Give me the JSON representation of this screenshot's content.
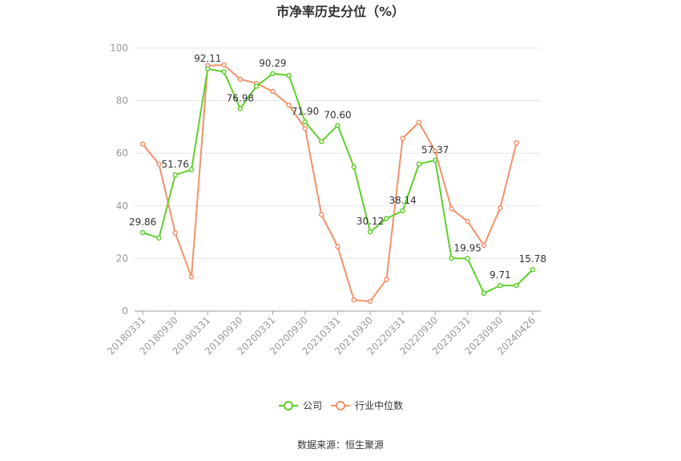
{
  "chart_data": {
    "type": "line",
    "title": "市净率历史分位（%）",
    "xlabel": "",
    "ylabel": "",
    "ylim": [
      0,
      100
    ],
    "yticks": [
      0,
      20,
      40,
      60,
      80,
      100
    ],
    "grid": true,
    "legend_position": "bottom",
    "xtick_labels": [
      "20180331",
      "20180930",
      "20190331",
      "20190930",
      "20200331",
      "20200930",
      "20210331",
      "20210930",
      "20220331",
      "20220930",
      "20230331",
      "20230930",
      "20240426"
    ],
    "series": [
      {
        "name": "公司",
        "color": "#5fcf2b",
        "values": [
          29.86,
          27.8,
          51.76,
          53.8,
          92.11,
          91.0,
          76.98,
          85.5,
          90.29,
          89.6,
          71.9,
          64.5,
          70.6,
          54.8,
          30.12,
          35.2,
          38.14,
          55.9,
          57.37,
          20.1,
          19.95,
          6.8,
          9.71,
          9.71,
          15.78
        ],
        "labels": {
          "0": "29.86",
          "2": "51.76",
          "4": "92.11",
          "6": "76.98",
          "8": "90.29",
          "10": "71.90",
          "12": "70.60",
          "14": "30.12",
          "16": "38.14",
          "18": "57.37",
          "20": "19.95",
          "22": "9.71",
          "24": "15.78"
        }
      },
      {
        "name": "行业中位数",
        "color": "#f4916a",
        "values": [
          63.5,
          55.8,
          29.7,
          13.0,
          93.3,
          93.6,
          88.2,
          86.6,
          83.5,
          78.3,
          69.4,
          36.7,
          24.5,
          4.2,
          3.7,
          12.0,
          65.7,
          71.8,
          60.8,
          38.9,
          34.1,
          25.0,
          39.2,
          64.0,
          null
        ]
      }
    ]
  },
  "source_text": "数据来源：恒生聚源"
}
